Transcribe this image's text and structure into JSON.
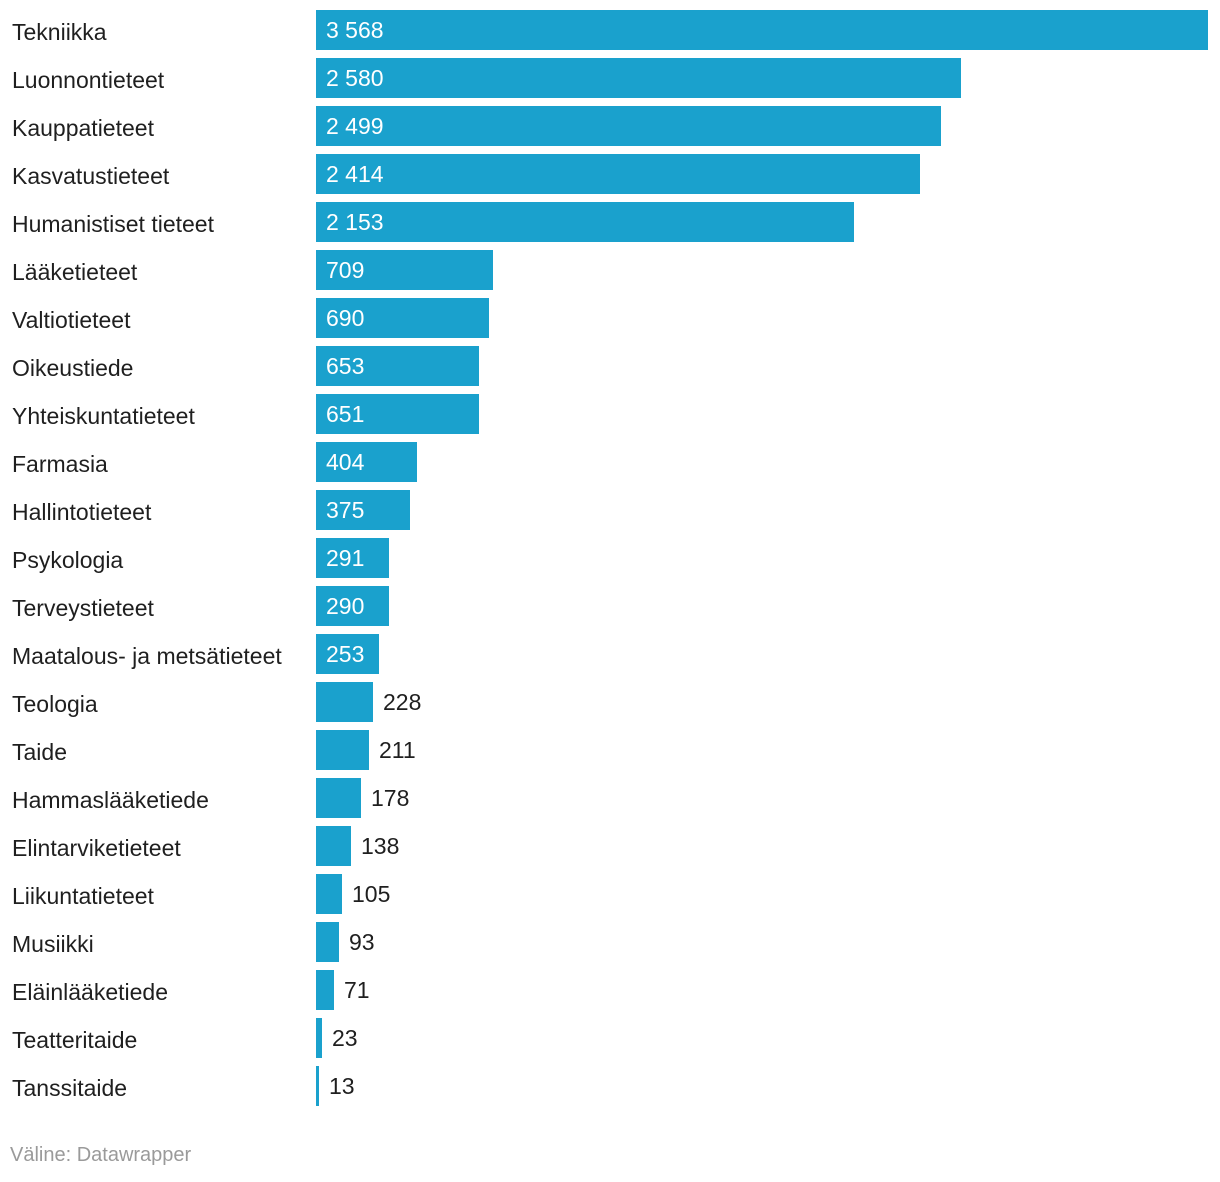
{
  "chart_data": {
    "type": "bar",
    "orientation": "horizontal",
    "bar_color": "#1aa1cd",
    "categories": [
      "Tekniikka",
      "Luonnontieteet",
      "Kauppatieteet",
      "Kasvatustieteet",
      "Humanistiset tieteet",
      "Lääketieteet",
      "Valtiotieteet",
      "Oikeustiede",
      "Yhteiskuntatieteet",
      "Farmasia",
      "Hallintotieteet",
      "Psykologia",
      "Terveystieteet",
      "Maatalous- ja metsätieteet",
      "Teologia",
      "Taide",
      "Hammaslääketiede",
      "Elintarviketieteet",
      "Liikuntatieteet",
      "Musiikki",
      "Eläinlääketiede",
      "Teatteritaide",
      "Tanssitaide"
    ],
    "values": [
      3568,
      2580,
      2499,
      2414,
      2153,
      709,
      690,
      653,
      651,
      404,
      375,
      291,
      290,
      253,
      228,
      211,
      178,
      138,
      105,
      93,
      71,
      23,
      13
    ],
    "value_labels": [
      "3 568",
      "2 580",
      "2 499",
      "2 414",
      "2 153",
      "709",
      "690",
      "653",
      "651",
      "404",
      "375",
      "291",
      "290",
      "253",
      "228",
      "211",
      "178",
      "138",
      "105",
      "93",
      "71",
      "23",
      "13"
    ],
    "xlim": [
      0,
      3568
    ]
  },
  "footer": {
    "source": "Väline: Datawrapper"
  }
}
